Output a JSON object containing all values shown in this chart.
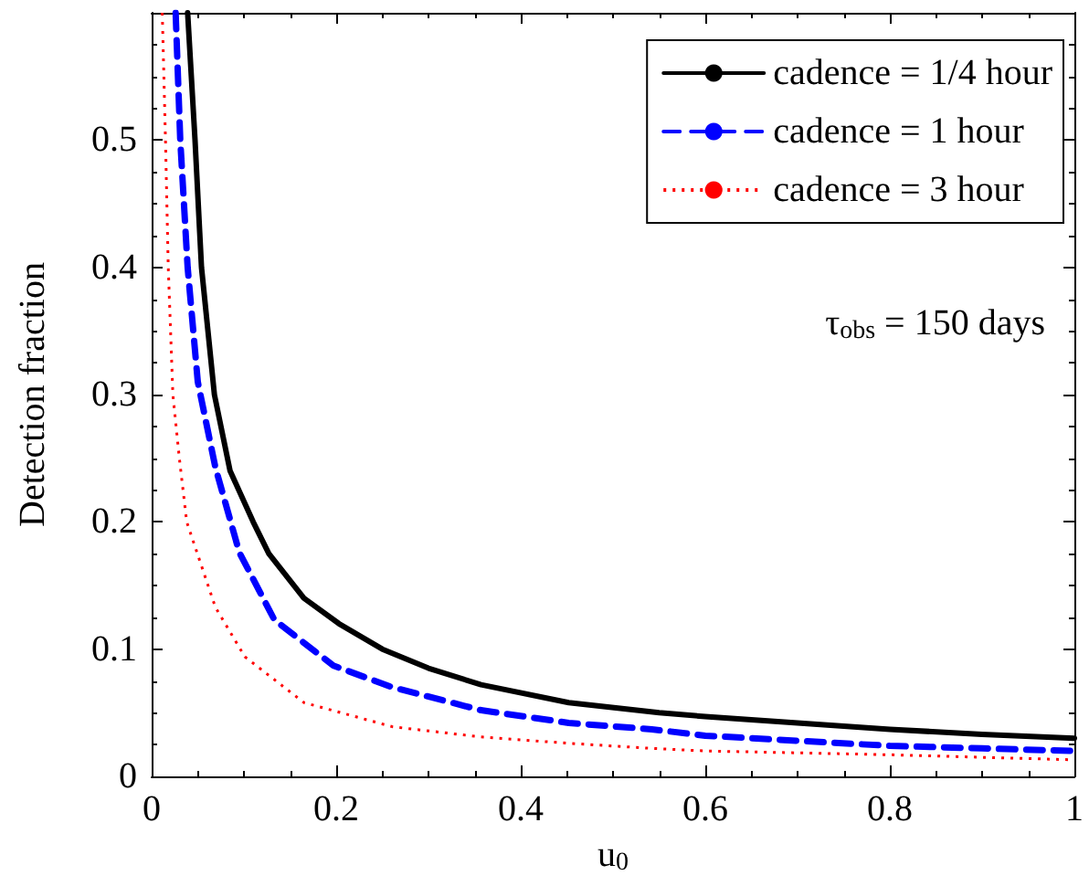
{
  "chart_data": {
    "type": "line",
    "xlabel": "u$_{0}$",
    "ylabel": "Detection fraction",
    "xlim": [
      0,
      1
    ],
    "xticks": [
      0,
      0.2,
      0.4,
      0.6,
      0.8,
      1
    ],
    "ylim": [
      0,
      0.6
    ],
    "yticks": [
      0,
      0.1,
      0.2,
      0.3,
      0.4,
      0.5
    ],
    "grid": false,
    "legend": "top right",
    "marker": "none",
    "annotations": [
      "τ$_{obs}$ = 150 days"
    ],
    "series": [
      {
        "name": "cadence = 1/4 hour",
        "color": "#000000",
        "line_style": "solid",
        "x": [
          0.039,
          0.047,
          0.054,
          0.068,
          0.085,
          0.11,
          0.127,
          0.165,
          0.203,
          0.25,
          0.3,
          0.357,
          0.452,
          0.55,
          0.6,
          0.7,
          0.8,
          0.9,
          1
        ],
        "values": [
          0.6,
          0.5,
          0.4,
          0.3,
          0.24,
          0.2,
          0.175,
          0.14,
          0.12,
          0.1,
          0.085,
          0.072,
          0.058,
          0.05,
          0.047,
          0.042,
          0.037,
          0.033,
          0.03
        ]
      },
      {
        "name": "cadence = 1 hour",
        "color": "#0000ff",
        "line_style": "dashed",
        "x": [
          0.026,
          0.031,
          0.039,
          0.05,
          0.069,
          0.095,
          0.133,
          0.197,
          0.261,
          0.357,
          0.452,
          0.542,
          0.6,
          0.7,
          0.8,
          0.9,
          1
        ],
        "values": [
          0.6,
          0.5,
          0.4,
          0.31,
          0.243,
          0.176,
          0.123,
          0.087,
          0.07,
          0.052,
          0.042,
          0.037,
          0.032,
          0.028,
          0.024,
          0.022,
          0.02
        ]
      },
      {
        "name": "cadence = 3 hour",
        "color": "#ff0000",
        "line_style": "dotted",
        "x": [
          0.0115,
          0.015,
          0.018,
          0.023,
          0.03,
          0.038,
          0.069,
          0.101,
          0.165,
          0.261,
          0.357,
          0.452,
          0.542,
          0.6,
          0.8,
          1
        ],
        "values": [
          0.6,
          0.5,
          0.4,
          0.3,
          0.25,
          0.2,
          0.133,
          0.094,
          0.058,
          0.039,
          0.031,
          0.026,
          0.022,
          0.02,
          0.017,
          0.013
        ]
      }
    ]
  }
}
